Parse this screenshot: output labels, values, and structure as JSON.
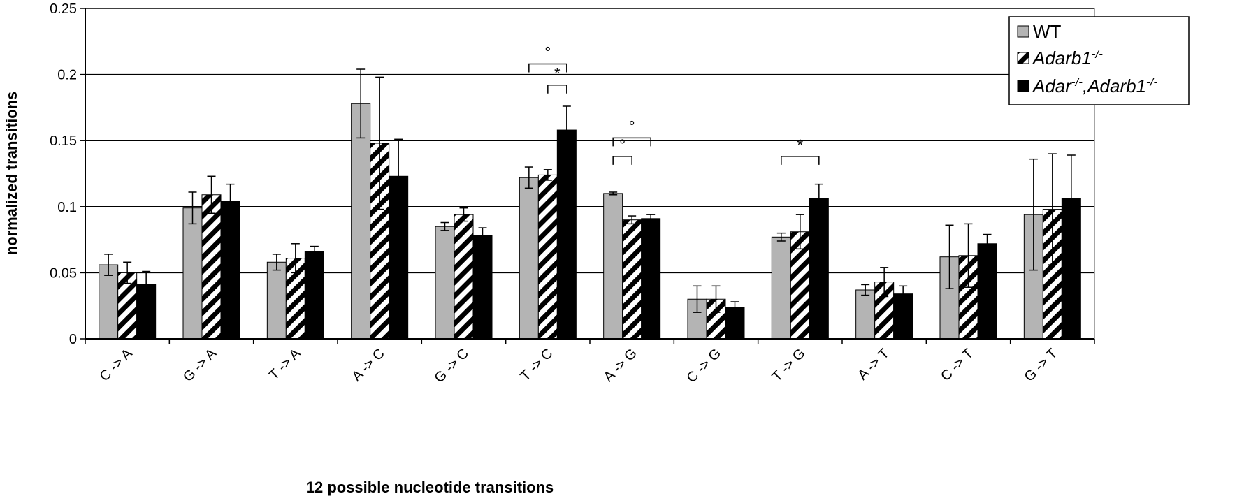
{
  "chart_data": {
    "type": "bar",
    "xlabel": "12 possible nucleotide transitions",
    "ylabel": "normalized transitions",
    "ylim": [
      0,
      0.25
    ],
    "yticks": [
      "0",
      "0.05",
      "0.1",
      "0.15",
      "0.2",
      "0.25"
    ],
    "grid": true,
    "legend_position": "top-right",
    "categories": [
      "C -> A",
      "G -> A",
      "T -> A",
      "A -> C",
      "G -> C",
      "T -> C",
      "A -> G",
      "C -> G",
      "T -> G",
      "A -> T",
      "C -> T",
      "G -> T"
    ],
    "series": [
      {
        "name": "WT",
        "fill": "gray",
        "values": [
          0.056,
          0.099,
          0.058,
          0.178,
          0.085,
          0.122,
          0.11,
          0.03,
          0.077,
          0.037,
          0.062,
          0.094
        ],
        "errors": [
          0.008,
          0.012,
          0.006,
          0.026,
          0.003,
          0.008,
          0.001,
          0.01,
          0.003,
          0.004,
          0.024,
          0.042
        ]
      },
      {
        "name_main": "Adarb1",
        "name_sup": "-/-",
        "fill": "hatched",
        "values": [
          0.05,
          0.109,
          0.061,
          0.148,
          0.094,
          0.124,
          0.09,
          0.03,
          0.081,
          0.043,
          0.063,
          0.098
        ],
        "errors": [
          0.008,
          0.014,
          0.011,
          0.05,
          0.005,
          0.004,
          0.003,
          0.01,
          0.013,
          0.011,
          0.024,
          0.042
        ]
      },
      {
        "name_parts": [
          {
            "t": "Adar",
            "sup": false
          },
          {
            "t": "-/-",
            "sup": true
          },
          {
            "t": ",Adarb1",
            "sup": false
          },
          {
            "t": "-/-",
            "sup": true
          }
        ],
        "fill": "black",
        "values": [
          0.041,
          0.104,
          0.066,
          0.123,
          0.078,
          0.158,
          0.091,
          0.024,
          0.106,
          0.034,
          0.072,
          0.106
        ],
        "errors": [
          0.01,
          0.013,
          0.004,
          0.028,
          0.006,
          0.018,
          0.003,
          0.004,
          0.011,
          0.006,
          0.007,
          0.033
        ]
      }
    ],
    "annotations": [
      {
        "label": "°",
        "category": 5,
        "from_series": 0,
        "to_series": 2,
        "y": 0.208
      },
      {
        "label": "*",
        "category": 5,
        "from_series": 1,
        "to_series": 2,
        "y": 0.192
      },
      {
        "label": "°",
        "category": 6,
        "from_series": 0,
        "to_series": 2,
        "y": 0.152
      },
      {
        "label": "°",
        "category": 6,
        "from_series": 0,
        "to_series": 1,
        "y": 0.138
      },
      {
        "label": "*",
        "category": 8,
        "from_series": 0,
        "to_series": 2,
        "y": 0.138
      }
    ]
  }
}
